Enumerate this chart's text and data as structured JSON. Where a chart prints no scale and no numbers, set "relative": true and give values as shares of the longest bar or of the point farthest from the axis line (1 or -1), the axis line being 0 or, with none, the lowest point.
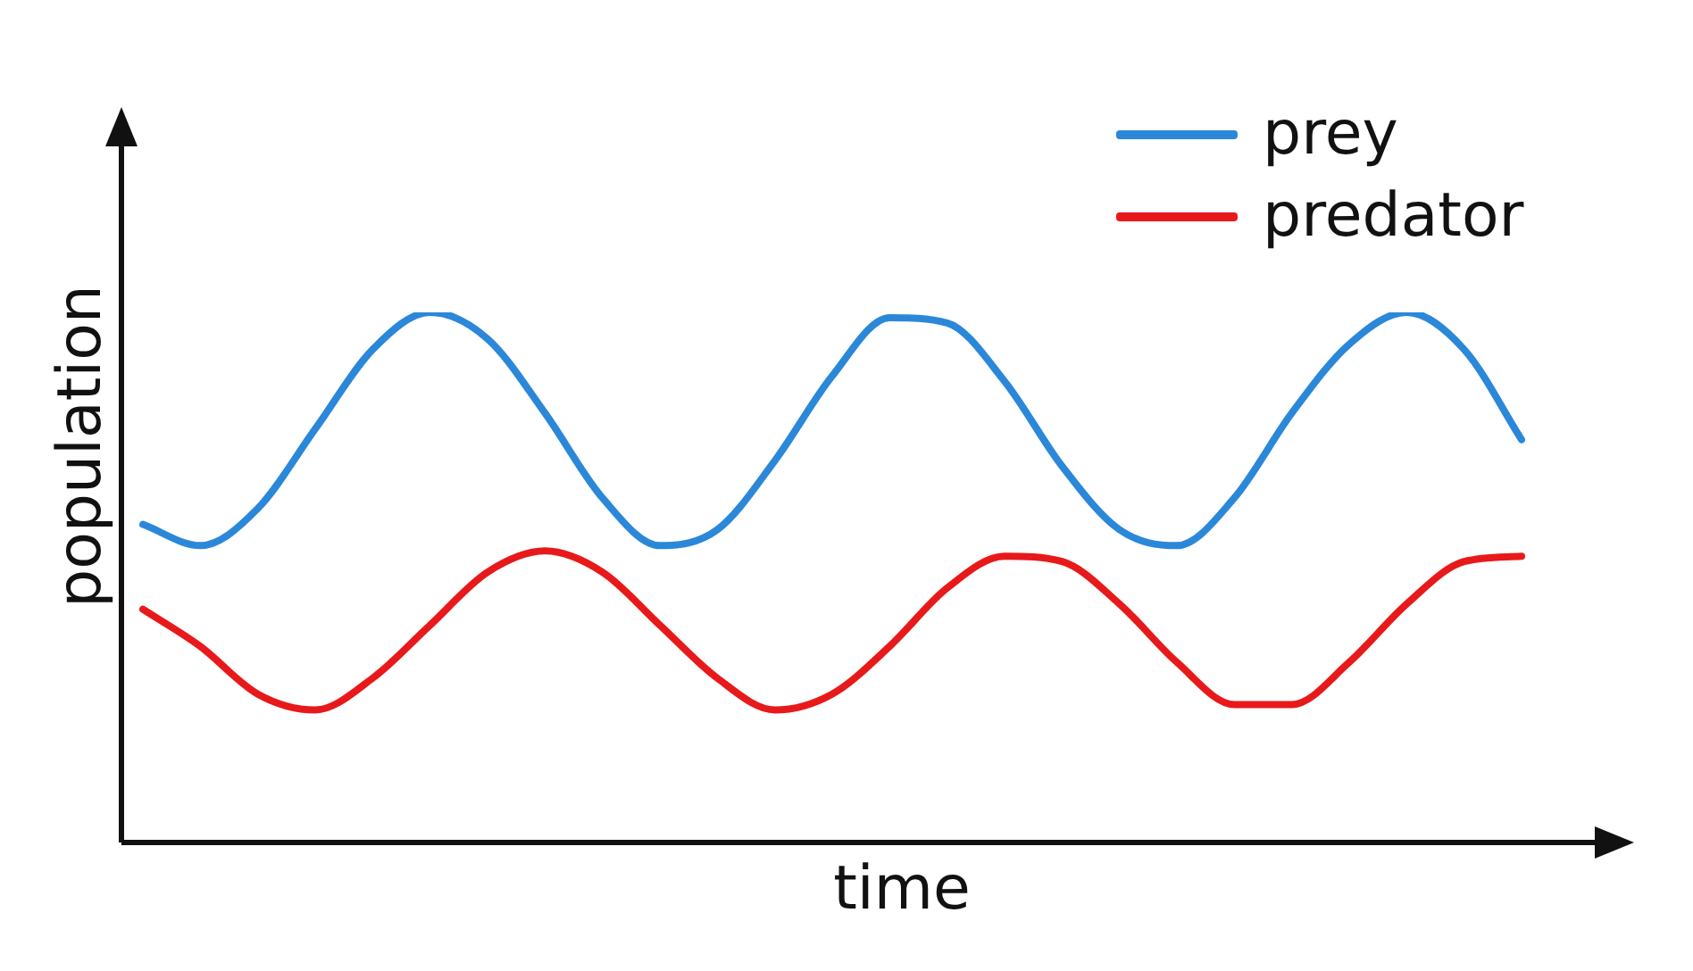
{
  "chart_data": {
    "type": "line",
    "relative": true,
    "xlabel": "time",
    "ylabel": "population",
    "legend": "top right",
    "marker": "none",
    "line_style": "solid",
    "categories": [
      null,
      null,
      null,
      null,
      null,
      null,
      null,
      null,
      null,
      null,
      null,
      null,
      null,
      null,
      null,
      null,
      null,
      null,
      null,
      null,
      null,
      null,
      null,
      null,
      null
    ],
    "series": [
      {
        "name": "prey",
        "color": "#2b88d9",
        "values": [
          0.6,
          0.56,
          0.63,
          0.78,
          0.93,
          1.0,
          0.95,
          0.81,
          0.65,
          0.56,
          0.59,
          0.72,
          0.88,
          0.99,
          0.98,
          0.87,
          0.71,
          0.59,
          0.56,
          0.65,
          0.81,
          0.94,
          1.0,
          0.93,
          0.76
        ]
      },
      {
        "name": "predator",
        "color": "#e8191a",
        "values": [
          0.44,
          0.37,
          0.28,
          0.25,
          0.31,
          0.41,
          0.51,
          0.55,
          0.51,
          0.41,
          0.31,
          0.25,
          0.28,
          0.37,
          0.48,
          0.54,
          0.53,
          0.45,
          0.34,
          0.26,
          0.26,
          0.34,
          0.45,
          0.53,
          0.54
        ]
      }
    ]
  }
}
